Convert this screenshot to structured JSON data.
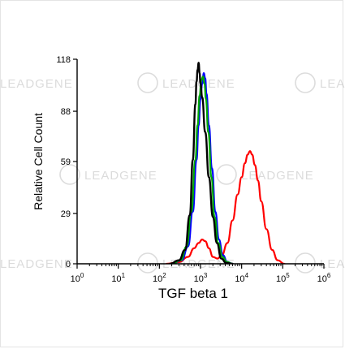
{
  "chart_data": {
    "type": "line",
    "title": "",
    "xlabel": "TGF beta 1",
    "ylabel": "Relative Cell Count",
    "x_scale": "log",
    "xlim": [
      1,
      1000000
    ],
    "ylim": [
      0,
      118
    ],
    "x_ticks": [
      {
        "value": 1,
        "base": "10",
        "exp": "0"
      },
      {
        "value": 10,
        "base": "10",
        "exp": "1"
      },
      {
        "value": 100,
        "base": "10",
        "exp": "2"
      },
      {
        "value": 1000,
        "base": "10",
        "exp": "3"
      },
      {
        "value": 10000,
        "base": "10",
        "exp": "4"
      },
      {
        "value": 100000,
        "base": "10",
        "exp": "5"
      },
      {
        "value": 1000000,
        "base": "10",
        "exp": "6"
      }
    ],
    "y_ticks": [
      0,
      29,
      59,
      88,
      118
    ],
    "grid": false,
    "legend": "none",
    "watermark": "LEADGENE",
    "series": [
      {
        "color": "#ff0000",
        "points": [
          [
            150,
            0
          ],
          [
            300,
            1
          ],
          [
            500,
            4
          ],
          [
            700,
            9
          ],
          [
            900,
            12
          ],
          [
            1100,
            14
          ],
          [
            1300,
            13
          ],
          [
            1600,
            9
          ],
          [
            2000,
            4
          ],
          [
            2600,
            3
          ],
          [
            3300,
            5
          ],
          [
            4500,
            12
          ],
          [
            6000,
            25
          ],
          [
            8000,
            40
          ],
          [
            10000,
            50
          ],
          [
            12000,
            58
          ],
          [
            14000,
            63
          ],
          [
            16000,
            65
          ],
          [
            18000,
            63
          ],
          [
            21000,
            57
          ],
          [
            25000,
            48
          ],
          [
            30000,
            36
          ],
          [
            40000,
            20
          ],
          [
            55000,
            8
          ],
          [
            75000,
            2
          ],
          [
            110000,
            0
          ]
        ]
      },
      {
        "color": "#0000ff",
        "points": [
          [
            200,
            0
          ],
          [
            350,
            2
          ],
          [
            500,
            10
          ],
          [
            650,
            30
          ],
          [
            800,
            60
          ],
          [
            900,
            80
          ],
          [
            1000,
            95
          ],
          [
            1100,
            104
          ],
          [
            1200,
            110
          ],
          [
            1300,
            107
          ],
          [
            1400,
            98
          ],
          [
            1600,
            80
          ],
          [
            1900,
            55
          ],
          [
            2300,
            30
          ],
          [
            2800,
            14
          ],
          [
            3500,
            5
          ],
          [
            4500,
            1
          ],
          [
            6000,
            0
          ]
        ]
      },
      {
        "color": "#00aa00",
        "points": [
          [
            200,
            0
          ],
          [
            330,
            2
          ],
          [
            460,
            10
          ],
          [
            600,
            30
          ],
          [
            750,
            60
          ],
          [
            850,
            80
          ],
          [
            950,
            97
          ],
          [
            1050,
            106
          ],
          [
            1150,
            108
          ],
          [
            1250,
            104
          ],
          [
            1350,
            95
          ],
          [
            1550,
            76
          ],
          [
            1850,
            50
          ],
          [
            2200,
            27
          ],
          [
            2700,
            12
          ],
          [
            3400,
            4
          ],
          [
            4400,
            1
          ],
          [
            6000,
            0
          ]
        ]
      },
      {
        "color": "#000000",
        "points": [
          [
            180,
            0
          ],
          [
            300,
            2
          ],
          [
            420,
            8
          ],
          [
            550,
            28
          ],
          [
            650,
            60
          ],
          [
            750,
            92
          ],
          [
            800,
            105
          ],
          [
            850,
            112
          ],
          [
            900,
            116
          ],
          [
            950,
            110
          ],
          [
            1000,
            104
          ],
          [
            1100,
            96
          ],
          [
            1300,
            76
          ],
          [
            1600,
            50
          ],
          [
            2000,
            27
          ],
          [
            2500,
            12
          ],
          [
            3200,
            3
          ],
          [
            4200,
            0.5
          ],
          [
            6000,
            0
          ]
        ]
      }
    ]
  }
}
